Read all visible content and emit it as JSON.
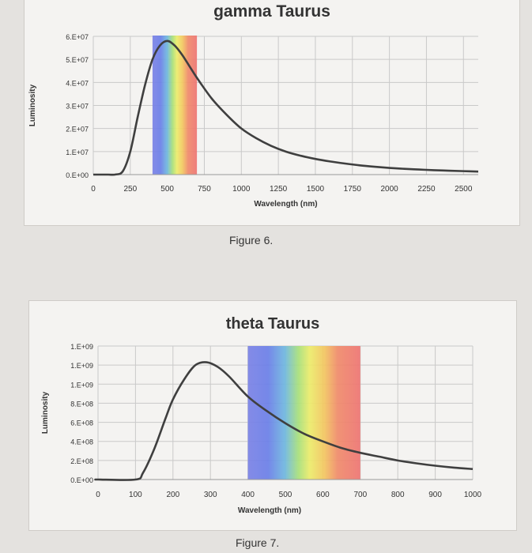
{
  "chart_data": [
    {
      "type": "line",
      "title": "gamma Taurus",
      "xlabel": "Wavelength (nm)",
      "ylabel": "Luminosity",
      "xlim": [
        0,
        2600
      ],
      "ylim": [
        0,
        60000000
      ],
      "x_ticks": [
        0,
        250,
        500,
        750,
        1000,
        1250,
        1500,
        1750,
        2000,
        2250,
        2500
      ],
      "x_tick_labels": [
        "0",
        "250",
        "500",
        "750",
        "1000",
        "1250",
        "1500",
        "1750",
        "2000",
        "2250",
        "2500"
      ],
      "y_ticks": [
        0,
        10000000,
        20000000,
        30000000,
        40000000,
        50000000,
        60000000
      ],
      "y_tick_labels": [
        "0.E+00",
        "1.E+07",
        "2.E+07",
        "3.E+07",
        "4.E+07",
        "5.E+07",
        "6.E+07"
      ],
      "visible_band_nm": [
        400,
        700
      ],
      "series": [
        {
          "name": "Luminosity",
          "color": "#3f3f3f",
          "x": [
            100,
            150,
            200,
            250,
            300,
            350,
            400,
            450,
            500,
            550,
            600,
            650,
            700,
            800,
            900,
            1000,
            1100,
            1200,
            1300,
            1400,
            1500,
            1600,
            1700,
            1800,
            1900,
            2000,
            2100,
            2200,
            2300,
            2400,
            2500,
            2600
          ],
          "values": [
            0,
            30000,
            1500000,
            10000000,
            25000000,
            39000000,
            50000000,
            56000000,
            58000000,
            56000000,
            52000000,
            47000000,
            42000000,
            33000000,
            26000000,
            20000000,
            15800000,
            12500000,
            10000000,
            8200000,
            6800000,
            5700000,
            4800000,
            4000000,
            3400000,
            2900000,
            2500000,
            2200000,
            1900000,
            1700000,
            1500000,
            1300000
          ]
        }
      ],
      "caption": "Figure 6."
    },
    {
      "type": "line",
      "title": "theta Taurus",
      "xlabel": "Wavelength (nm)",
      "ylabel": "Luminosity",
      "xlim": [
        0,
        1000
      ],
      "ylim": [
        0,
        1400000000
      ],
      "x_ticks": [
        0,
        100,
        200,
        300,
        400,
        500,
        600,
        700,
        800,
        900,
        1000
      ],
      "x_tick_labels": [
        "0",
        "100",
        "200",
        "300",
        "400",
        "500",
        "600",
        "700",
        "800",
        "900",
        "1000"
      ],
      "y_ticks": [
        0,
        200000000,
        400000000,
        600000000,
        800000000,
        1000000000,
        1200000000,
        1400000000
      ],
      "y_tick_labels": [
        "0.E+00",
        "2.E+08",
        "4.E+08",
        "6.E+08",
        "8.E+08",
        "1.E+09",
        "1.E+09",
        "1.E+09"
      ],
      "visible_band_nm": [
        400,
        700
      ],
      "series": [
        {
          "name": "Luminosity",
          "color": "#3f3f3f",
          "x": [
            0,
            100,
            120,
            150,
            180,
            200,
            230,
            260,
            290,
            320,
            350,
            400,
            450,
            500,
            550,
            600,
            650,
            700,
            750,
            800,
            850,
            900,
            950,
            1000
          ],
          "values": [
            0,
            0,
            70000000,
            320000000,
            640000000,
            840000000,
            1050000000,
            1200000000,
            1230000000,
            1180000000,
            1080000000,
            870000000,
            720000000,
            590000000,
            480000000,
            400000000,
            330000000,
            280000000,
            240000000,
            200000000,
            170000000,
            145000000,
            125000000,
            110000000
          ]
        }
      ],
      "caption": "Figure 7."
    }
  ]
}
